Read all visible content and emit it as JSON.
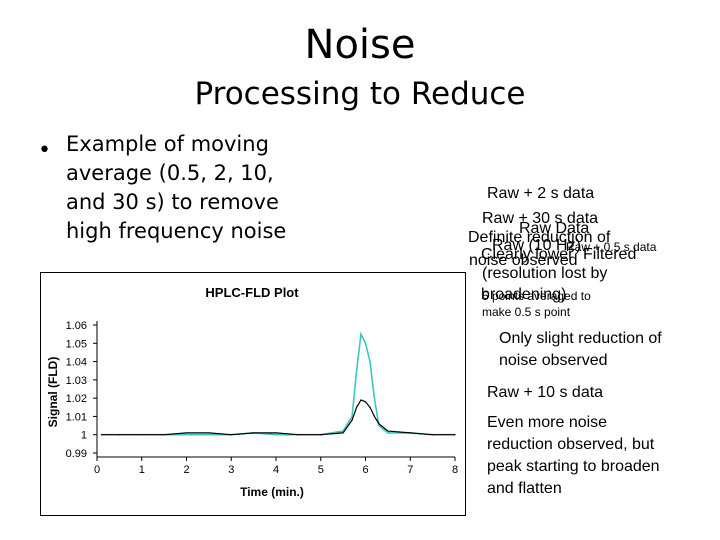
{
  "slide": {
    "title": "Noise",
    "subtitle": "Processing to Reduce",
    "bullet": {
      "lines": [
        "Example of moving",
        "average (0.5, 2, 10,",
        "and 30 s) to remove",
        "high frequency noise"
      ]
    }
  },
  "annotations": {
    "raw_2s": "Raw + 2 s data",
    "raw_30s": "Raw + 30 s data",
    "raw_data": "Raw Data",
    "definite_reduction": "Definite reduction of",
    "raw_10hz": "Raw (10 Hz)",
    "raw_05s_data": "Raw + 0.5 s data",
    "clearly_lower": "Clearly lower",
    "filtered": "Filtered",
    "noise_observed": "noise observed",
    "resolution_lost": "(resolution lost by",
    "broadening": "broadening)",
    "points_averaged": "5 points averaged to",
    "make_point": "make 0.5 s point",
    "slight_reduction_1": "Only slight reduction of",
    "slight_reduction_2": "noise observed",
    "raw_10s": "Raw + 10 s data",
    "more_noise_1": "Even more noise",
    "more_noise_2": "reduction observed, but",
    "more_noise_3": "peak starting to broaden",
    "more_noise_4": "and flatten"
  },
  "chart_data": {
    "type": "line",
    "title": "HPLC-FLD Plot",
    "xlabel": "Time (min.)",
    "ylabel": "Signal (FLD)",
    "xlim": [
      0,
      8
    ],
    "ylim": [
      0.99,
      1.06
    ],
    "x_ticks": [
      "0",
      "1",
      "2",
      "3",
      "4",
      "5",
      "6",
      "7",
      "8"
    ],
    "y_ticks": [
      "0.99",
      "1",
      "1.01",
      "1.02",
      "1.03",
      "1.04",
      "1.05",
      "1.06"
    ],
    "grid": false,
    "legend": "none",
    "series": [
      {
        "colour": "#3cc6c6",
        "x": [
          0.1,
          0.5,
          1.0,
          1.5,
          2.0,
          2.5,
          3.0,
          3.5,
          4.0,
          4.5,
          5.0,
          5.5,
          5.7,
          5.8,
          5.9,
          6.0,
          6.1,
          6.2,
          6.3,
          6.5,
          7.0,
          7.5,
          8.0
        ],
        "y": [
          1.0,
          1.0,
          1.0,
          1.0,
          1.0,
          1.0,
          1.0,
          1.001,
          1.0,
          1.0,
          1.0,
          1.002,
          1.01,
          1.035,
          1.055,
          1.05,
          1.04,
          1.02,
          1.005,
          1.001,
          1.001,
          1.0,
          1.0
        ]
      },
      {
        "colour": "#000000",
        "x": [
          0.1,
          0.5,
          1.0,
          1.5,
          2.0,
          2.5,
          3.0,
          3.5,
          4.0,
          4.5,
          5.0,
          5.5,
          5.7,
          5.8,
          5.9,
          6.0,
          6.1,
          6.2,
          6.3,
          6.5,
          7.0,
          7.5,
          8.0
        ],
        "y": [
          1.0,
          1.0,
          1.0,
          1.0,
          1.001,
          1.001,
          1.0,
          1.001,
          1.001,
          1.0,
          1.0,
          1.001,
          1.008,
          1.015,
          1.019,
          1.018,
          1.015,
          1.01,
          1.006,
          1.002,
          1.001,
          1.0,
          1.0
        ]
      }
    ]
  }
}
